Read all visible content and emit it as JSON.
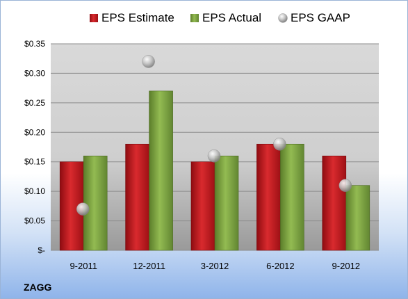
{
  "chart_data": {
    "type": "bar",
    "categories": [
      "9-2011",
      "12-2011",
      "3-2012",
      "6-2012",
      "9-2012"
    ],
    "series": [
      {
        "name": "EPS Estimate",
        "values": [
          0.15,
          0.18,
          0.15,
          0.18,
          0.16
        ],
        "color": "#c0141b"
      },
      {
        "name": "EPS Actual",
        "values": [
          0.16,
          0.27,
          0.16,
          0.18,
          0.11
        ],
        "color": "#7aa13b"
      },
      {
        "name": "EPS GAAP",
        "values": [
          0.07,
          0.32,
          0.16,
          0.18,
          0.11
        ],
        "color": "#b8b8b8",
        "marker": "sphere"
      }
    ],
    "ylim": [
      0,
      0.35
    ],
    "yticks": [
      {
        "value": 0.35,
        "label": "$0.35"
      },
      {
        "value": 0.3,
        "label": "$0.30"
      },
      {
        "value": 0.25,
        "label": "$0.25"
      },
      {
        "value": 0.2,
        "label": "$0.20"
      },
      {
        "value": 0.15,
        "label": "$0.15"
      },
      {
        "value": 0.1,
        "label": "$0.10"
      },
      {
        "value": 0.05,
        "label": "$0.05"
      },
      {
        "value": 0,
        "label": "$-"
      }
    ],
    "grid": true,
    "legend_position": "top",
    "annotation": "ZAGG"
  }
}
